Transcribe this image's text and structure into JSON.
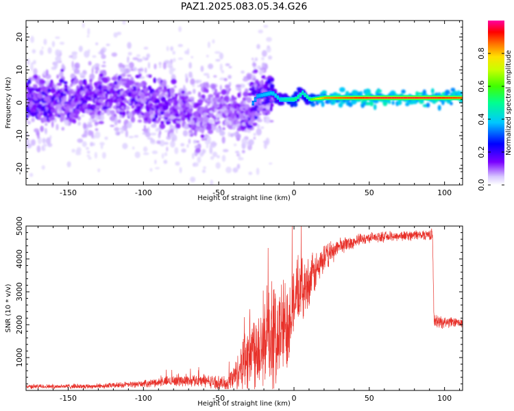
{
  "title": "PAZ1.2025.083.05.34.G26",
  "chart_data": [
    {
      "type": "heatmap",
      "xlabel": "Height of straight line (km)",
      "ylabel": "Frequency (Hz)",
      "xlim": [
        -178,
        112
      ],
      "ylim": [
        -25,
        25
      ],
      "xticks": [
        -150,
        -100,
        -50,
        0,
        50,
        100
      ],
      "yticks": [
        -20,
        -10,
        0,
        10,
        20
      ],
      "colorbar": {
        "label": "Normalized spectral amplitude",
        "range": [
          0,
          1
        ],
        "ticks": [
          "0.0",
          "0.2",
          "0.4",
          "0.6",
          "0.8"
        ],
        "colormap": "rainbow (white-lavender, violet, blue, cyan, green, yellow, orange, red, magenta)"
      },
      "ridge": [
        {
          "x": -170,
          "freq": 0,
          "amp": 0.35
        },
        {
          "x": -150,
          "freq": 1,
          "amp": 0.3
        },
        {
          "x": -130,
          "freq": 2,
          "amp": 0.3
        },
        {
          "x": -110,
          "freq": 2,
          "amp": 0.3
        },
        {
          "x": -90,
          "freq": 0,
          "amp": 0.3
        },
        {
          "x": -75,
          "freq": -1,
          "amp": 0.25
        },
        {
          "x": -65,
          "freq": -5,
          "amp": 0.25
        },
        {
          "x": -55,
          "freq": -2,
          "amp": 0.2
        },
        {
          "x": -45,
          "freq": -2,
          "amp": 0.2
        },
        {
          "x": -35,
          "freq": -5,
          "amp": 0.25
        },
        {
          "x": -25,
          "freq": 2,
          "amp": 0.35
        },
        {
          "x": -15,
          "freq": 3,
          "amp": 0.4
        },
        {
          "x": -10,
          "freq": 1,
          "amp": 0.45
        },
        {
          "x": 0,
          "freq": 1,
          "amp": 0.6
        },
        {
          "x": 5,
          "freq": 3,
          "amp": 0.5
        },
        {
          "x": 10,
          "freq": 1,
          "amp": 0.6
        },
        {
          "x": 20,
          "freq": 1.5,
          "amp": 0.85
        },
        {
          "x": 50,
          "freq": 1.5,
          "amp": 0.95
        },
        {
          "x": 90,
          "freq": 1.5,
          "amp": 0.95
        },
        {
          "x": 110,
          "freq": 1.5,
          "amp": 0.9
        }
      ]
    },
    {
      "type": "line",
      "xlabel": "Height of straight line (km)",
      "ylabel": "SNR (10 * v/v)",
      "xlim": [
        -178,
        112
      ],
      "ylim": [
        0,
        5000
      ],
      "xticks": [
        -150,
        -100,
        -50,
        0,
        50,
        100
      ],
      "yticks": [
        1000,
        2000,
        3000,
        4000,
        5000
      ],
      "color": "#e8312a",
      "envelope": [
        {
          "x": -178,
          "mean": 120,
          "spread": 80
        },
        {
          "x": -130,
          "mean": 130,
          "spread": 90
        },
        {
          "x": -100,
          "mean": 200,
          "spread": 120
        },
        {
          "x": -80,
          "mean": 300,
          "spread": 200
        },
        {
          "x": -60,
          "mean": 300,
          "spread": 220
        },
        {
          "x": -45,
          "mean": 200,
          "spread": 250
        },
        {
          "x": -38,
          "mean": 500,
          "spread": 600
        },
        {
          "x": -30,
          "mean": 1200,
          "spread": 1400
        },
        {
          "x": -20,
          "mean": 1500,
          "spread": 1700
        },
        {
          "x": -12,
          "mean": 1600,
          "spread": 1900
        },
        {
          "x": -5,
          "mean": 2000,
          "spread": 1800
        },
        {
          "x": 0,
          "mean": 2800,
          "spread": 1300
        },
        {
          "x": 10,
          "mean": 3300,
          "spread": 900
        },
        {
          "x": 20,
          "mean": 4000,
          "spread": 500
        },
        {
          "x": 30,
          "mean": 4400,
          "spread": 300
        },
        {
          "x": 50,
          "mean": 4650,
          "spread": 180
        },
        {
          "x": 80,
          "mean": 4720,
          "spread": 180
        },
        {
          "x": 92,
          "mean": 4750,
          "spread": 200
        },
        {
          "x": 93,
          "mean": 2100,
          "spread": 250
        },
        {
          "x": 112,
          "mean": 2050,
          "spread": 150
        }
      ]
    }
  ]
}
